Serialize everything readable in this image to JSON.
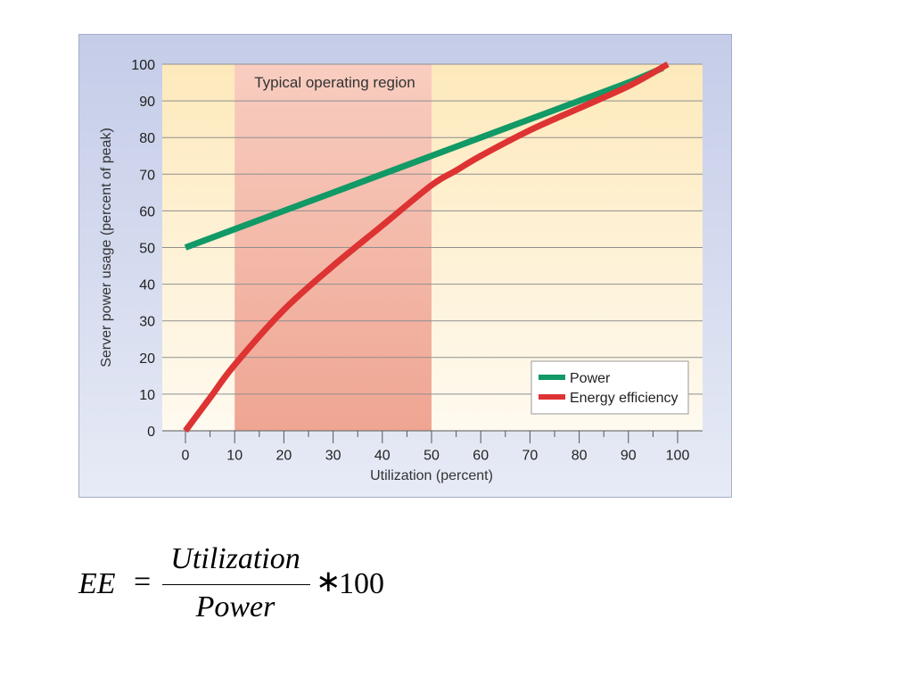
{
  "chart_data": {
    "type": "line",
    "xlabel": "Utilization (percent)",
    "ylabel": "Server power usage (percent of peak)",
    "xlim": [
      0,
      100
    ],
    "ylim": [
      0,
      100
    ],
    "x_ticks": [
      0,
      10,
      20,
      30,
      40,
      50,
      60,
      70,
      80,
      90,
      100
    ],
    "y_ticks": [
      0,
      10,
      20,
      30,
      40,
      50,
      60,
      70,
      80,
      90,
      100
    ],
    "grid": "horizontal",
    "legend_position": "bottom-right",
    "annotations": [
      {
        "text": "Typical operating region",
        "x_range": [
          10,
          50
        ]
      }
    ],
    "series": [
      {
        "name": "Power",
        "color": "#119966",
        "x": [
          0,
          10,
          20,
          30,
          40,
          50,
          60,
          70,
          80,
          90,
          97
        ],
        "y": [
          50,
          55,
          60,
          65,
          70,
          75,
          80,
          85,
          90,
          95,
          99
        ]
      },
      {
        "name": "Energy efficiency",
        "color": "#dd3333",
        "x": [
          0,
          5,
          10,
          20,
          30,
          40,
          50,
          55,
          60,
          70,
          80,
          90,
          98
        ],
        "y": [
          0,
          9,
          18,
          33,
          45,
          56,
          67,
          71,
          75,
          82,
          88,
          94,
          100
        ]
      }
    ]
  },
  "formula": {
    "lhs": "EE",
    "equals": "=",
    "numerator": "Utilization",
    "denominator": "Power",
    "operator": "∗",
    "multiplier": "100"
  }
}
